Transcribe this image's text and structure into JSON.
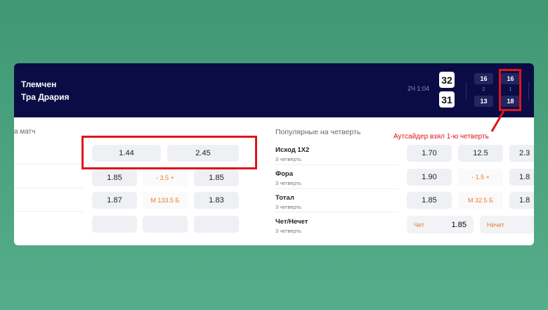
{
  "match": {
    "team1": "Тлемчен",
    "team2": "Тра Дрария",
    "time": "2Ч 1:04",
    "score1": "32",
    "score2": "31",
    "quarters": [
      {
        "num": "2",
        "t1": "16",
        "t2": "13"
      },
      {
        "num": "1",
        "t1": "16",
        "t2": "18"
      }
    ]
  },
  "annotation": "Аутсайдер взял 1-ю четверть",
  "left": {
    "title": "а матч",
    "row1": [
      "1.44",
      "2.45"
    ],
    "row2": [
      "1.85",
      "- 3.5 +",
      "1.85"
    ],
    "row3": [
      "1.87",
      "М 133.5 Б",
      "1.83"
    ]
  },
  "right": {
    "title": "Популярные на четверть",
    "rows": [
      {
        "label": "Исход 1Х2",
        "sub": "3 четверть",
        "v": [
          "1.70",
          "12.5",
          "2.3"
        ]
      },
      {
        "label": "Фора",
        "sub": "3 четверть",
        "v": [
          "1.90",
          "- 1.5 +",
          "1.8"
        ]
      },
      {
        "label": "Тотал",
        "sub": "3 четверть",
        "v": [
          "1.85",
          "М 32.5 Б",
          "1.8"
        ]
      },
      {
        "label": "Чет/Нечет",
        "sub": "3 четверть",
        "v": [
          "Чет",
          "1.85",
          "Нечет"
        ]
      }
    ]
  },
  "colors": {
    "header": "#0b0c45",
    "highlight": "#e0141c",
    "accent": "#f07a2a"
  }
}
